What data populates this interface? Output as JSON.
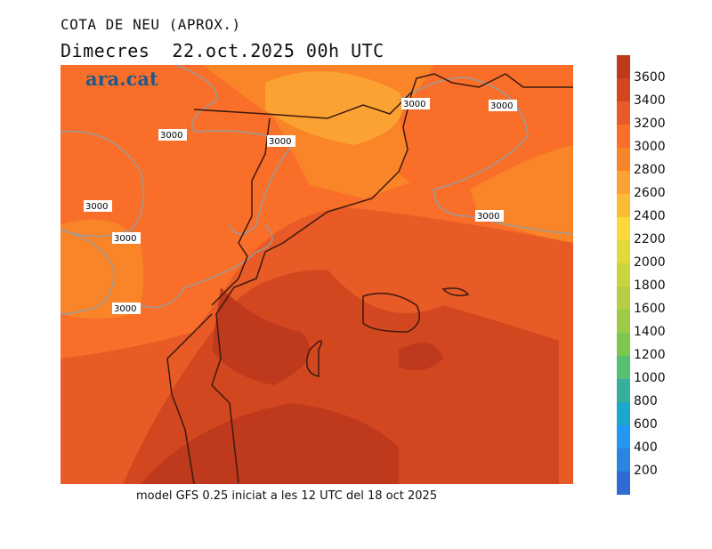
{
  "title": "COTA DE NEU (APROX.)",
  "subtitle": "Dimecres  22.oct.2025 00h UTC",
  "logo": "ara.cat",
  "footer": "model GFS 0.25 iniciat a les 12 UTC del 18 oct 2025",
  "contour_label": "3000",
  "colorbar": {
    "labels": [
      "3600",
      "3400",
      "3200",
      "3000",
      "2800",
      "2600",
      "2400",
      "2200",
      "2000",
      "1800",
      "1600",
      "1400",
      "1200",
      "1000",
      "800",
      "600",
      "400",
      "200"
    ],
    "colors": [
      "#bf3a1c",
      "#d2471f",
      "#e85a26",
      "#f96e29",
      "#fa8428",
      "#fca232",
      "#fcbb34",
      "#fcd93a",
      "#e3d93b",
      "#cbd43e",
      "#b4cf44",
      "#9bcb48",
      "#7dc74d",
      "#56bf73",
      "#34b09c",
      "#1ca7cc",
      "#2398f4",
      "#2a84e0",
      "#2d6ad2"
    ]
  }
}
